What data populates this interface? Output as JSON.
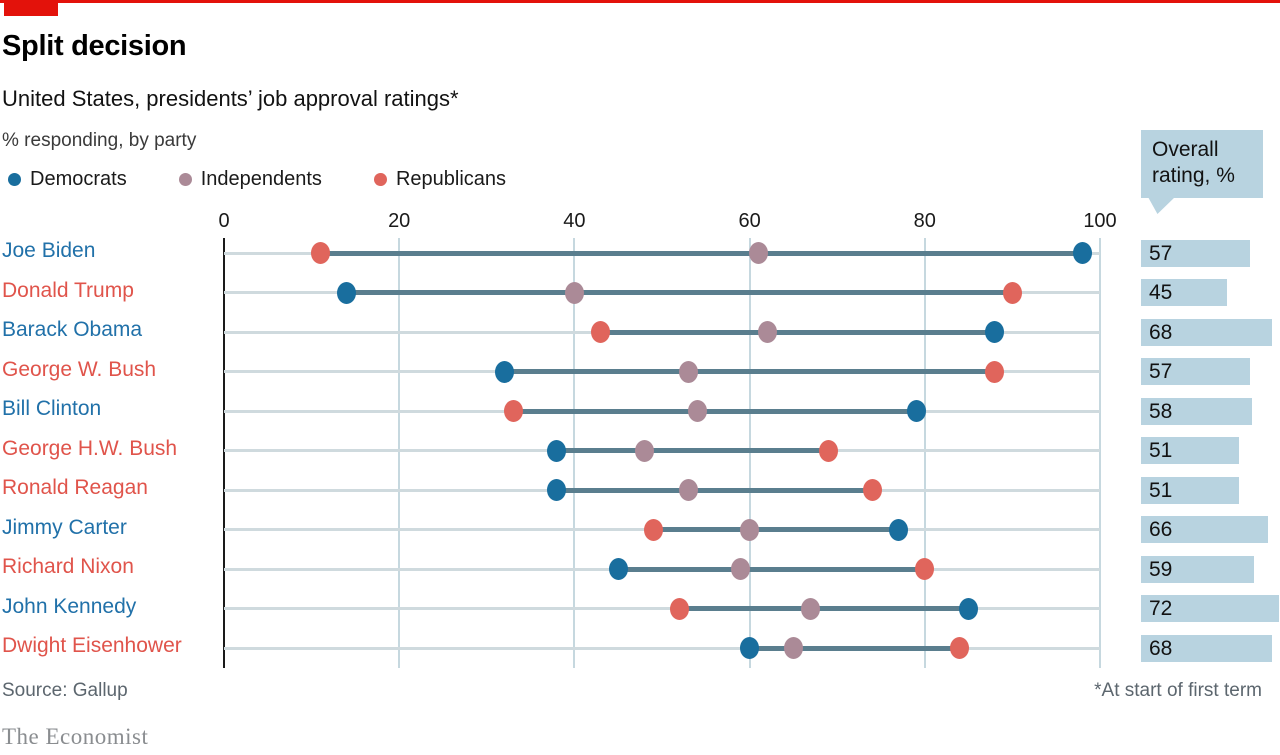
{
  "header": {
    "title": "Split decision",
    "subtitle": "United States, presidents’ job approval ratings*",
    "unit_note": "% responding, by party"
  },
  "legend": {
    "items": [
      {
        "label": "Democrats",
        "key": "democrats"
      },
      {
        "label": "Independents",
        "key": "independents"
      },
      {
        "label": "Republicans",
        "key": "republicans"
      }
    ]
  },
  "overall_header": {
    "line1": "Overall",
    "line2": "rating, %"
  },
  "colors": {
    "accent_red": "#e3120b",
    "democrats": "#196e9e",
    "independents": "#ab8a97",
    "republicans": "#e0655c",
    "dem_text": "#2171a9",
    "rep_text": "#e0544b",
    "connector": "#5a7e8e",
    "row_line": "#cfdade",
    "gridline": "#c6d8df",
    "light_blue_fill": "#b8d3e0"
  },
  "chart_data": {
    "type": "scatter",
    "subtype": "dumbbell",
    "title": "Split decision",
    "subtitle": "United States, presidents’ job approval ratings*",
    "xlabel": "% responding, by party",
    "xlim": [
      0,
      100
    ],
    "x_ticks": [
      0,
      20,
      40,
      60,
      80,
      100
    ],
    "grid": "vertical",
    "legend_position": "top-left",
    "series_names": [
      "Democrats",
      "Independents",
      "Republicans"
    ],
    "rows": [
      {
        "name": "Joe Biden",
        "party": "dem",
        "democrats": 98,
        "independents": 61,
        "republicans": 11,
        "overall": 57
      },
      {
        "name": "Donald Trump",
        "party": "rep",
        "democrats": 14,
        "independents": 40,
        "republicans": 90,
        "overall": 45
      },
      {
        "name": "Barack Obama",
        "party": "dem",
        "democrats": 88,
        "independents": 62,
        "republicans": 43,
        "overall": 68
      },
      {
        "name": "George W. Bush",
        "party": "rep",
        "democrats": 32,
        "independents": 53,
        "republicans": 88,
        "overall": 57
      },
      {
        "name": "Bill Clinton",
        "party": "dem",
        "democrats": 79,
        "independents": 54,
        "republicans": 33,
        "overall": 58
      },
      {
        "name": "George H.W. Bush",
        "party": "rep",
        "democrats": 38,
        "independents": 48,
        "republicans": 69,
        "overall": 51
      },
      {
        "name": "Ronald Reagan",
        "party": "rep",
        "democrats": 38,
        "independents": 53,
        "republicans": 74,
        "overall": 51
      },
      {
        "name": "Jimmy Carter",
        "party": "dem",
        "democrats": 77,
        "independents": 60,
        "republicans": 49,
        "overall": 66
      },
      {
        "name": "Richard Nixon",
        "party": "rep",
        "democrats": 45,
        "independents": 59,
        "republicans": 80,
        "overall": 59
      },
      {
        "name": "John Kennedy",
        "party": "dem",
        "democrats": 85,
        "independents": 67,
        "republicans": 52,
        "overall": 72
      },
      {
        "name": "Dwight Eisenhower",
        "party": "rep",
        "democrats": 60,
        "independents": 65,
        "republicans": 84,
        "overall": 68
      }
    ]
  },
  "footer": {
    "source": "Source: Gallup",
    "note": "*At start of first term",
    "brand": "The Economist"
  }
}
